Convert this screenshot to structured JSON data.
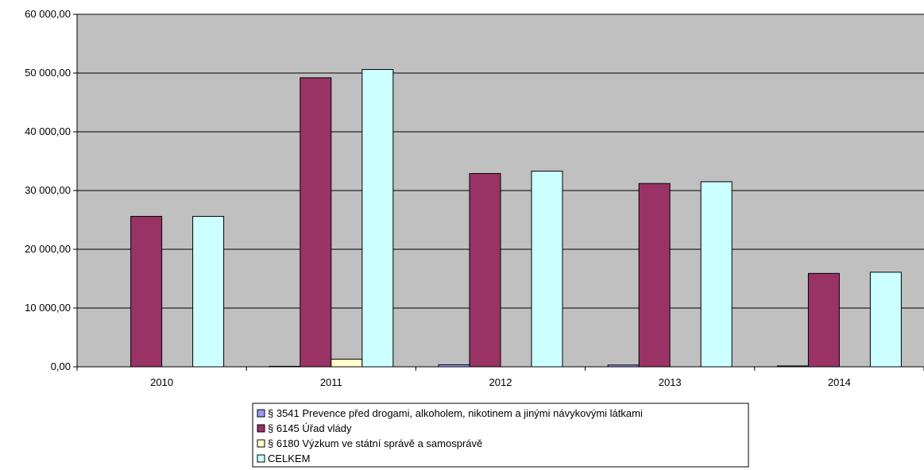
{
  "chart_data": {
    "type": "bar",
    "categories": [
      "2010",
      "2011",
      "2012",
      "2013",
      "2014"
    ],
    "ylim": [
      0,
      60000
    ],
    "y_ticks": [
      0,
      10000,
      20000,
      30000,
      40000,
      50000,
      60000
    ],
    "y_tick_labels": [
      "0,00",
      "10 000,00",
      "20 000,00",
      "30 000,00",
      "40 000,00",
      "50 000,00",
      "60 000,00"
    ],
    "grid": "horizontal",
    "legend_position": "bottom",
    "series": [
      {
        "name": "§ 3541 Prevence před drogami, alkoholem, nikotinem a jinými návykovými látkami",
        "values": [
          0,
          80,
          350,
          300,
          150
        ],
        "color": "#9999ff"
      },
      {
        "name": "§ 6145 Úřad vlády",
        "values": [
          25600,
          49200,
          32900,
          31200,
          15900
        ],
        "color": "#993366"
      },
      {
        "name": "§ 6180 Výzkum ve státní správě a samosprávě",
        "values": [
          0,
          1300,
          0,
          0,
          0
        ],
        "color": "#ffffcc"
      },
      {
        "name": "CELKEM",
        "values": [
          25600,
          50600,
          33300,
          31500,
          16100
        ],
        "color": "#ccffff"
      }
    ],
    "plot_background": "#c0c0c0"
  }
}
